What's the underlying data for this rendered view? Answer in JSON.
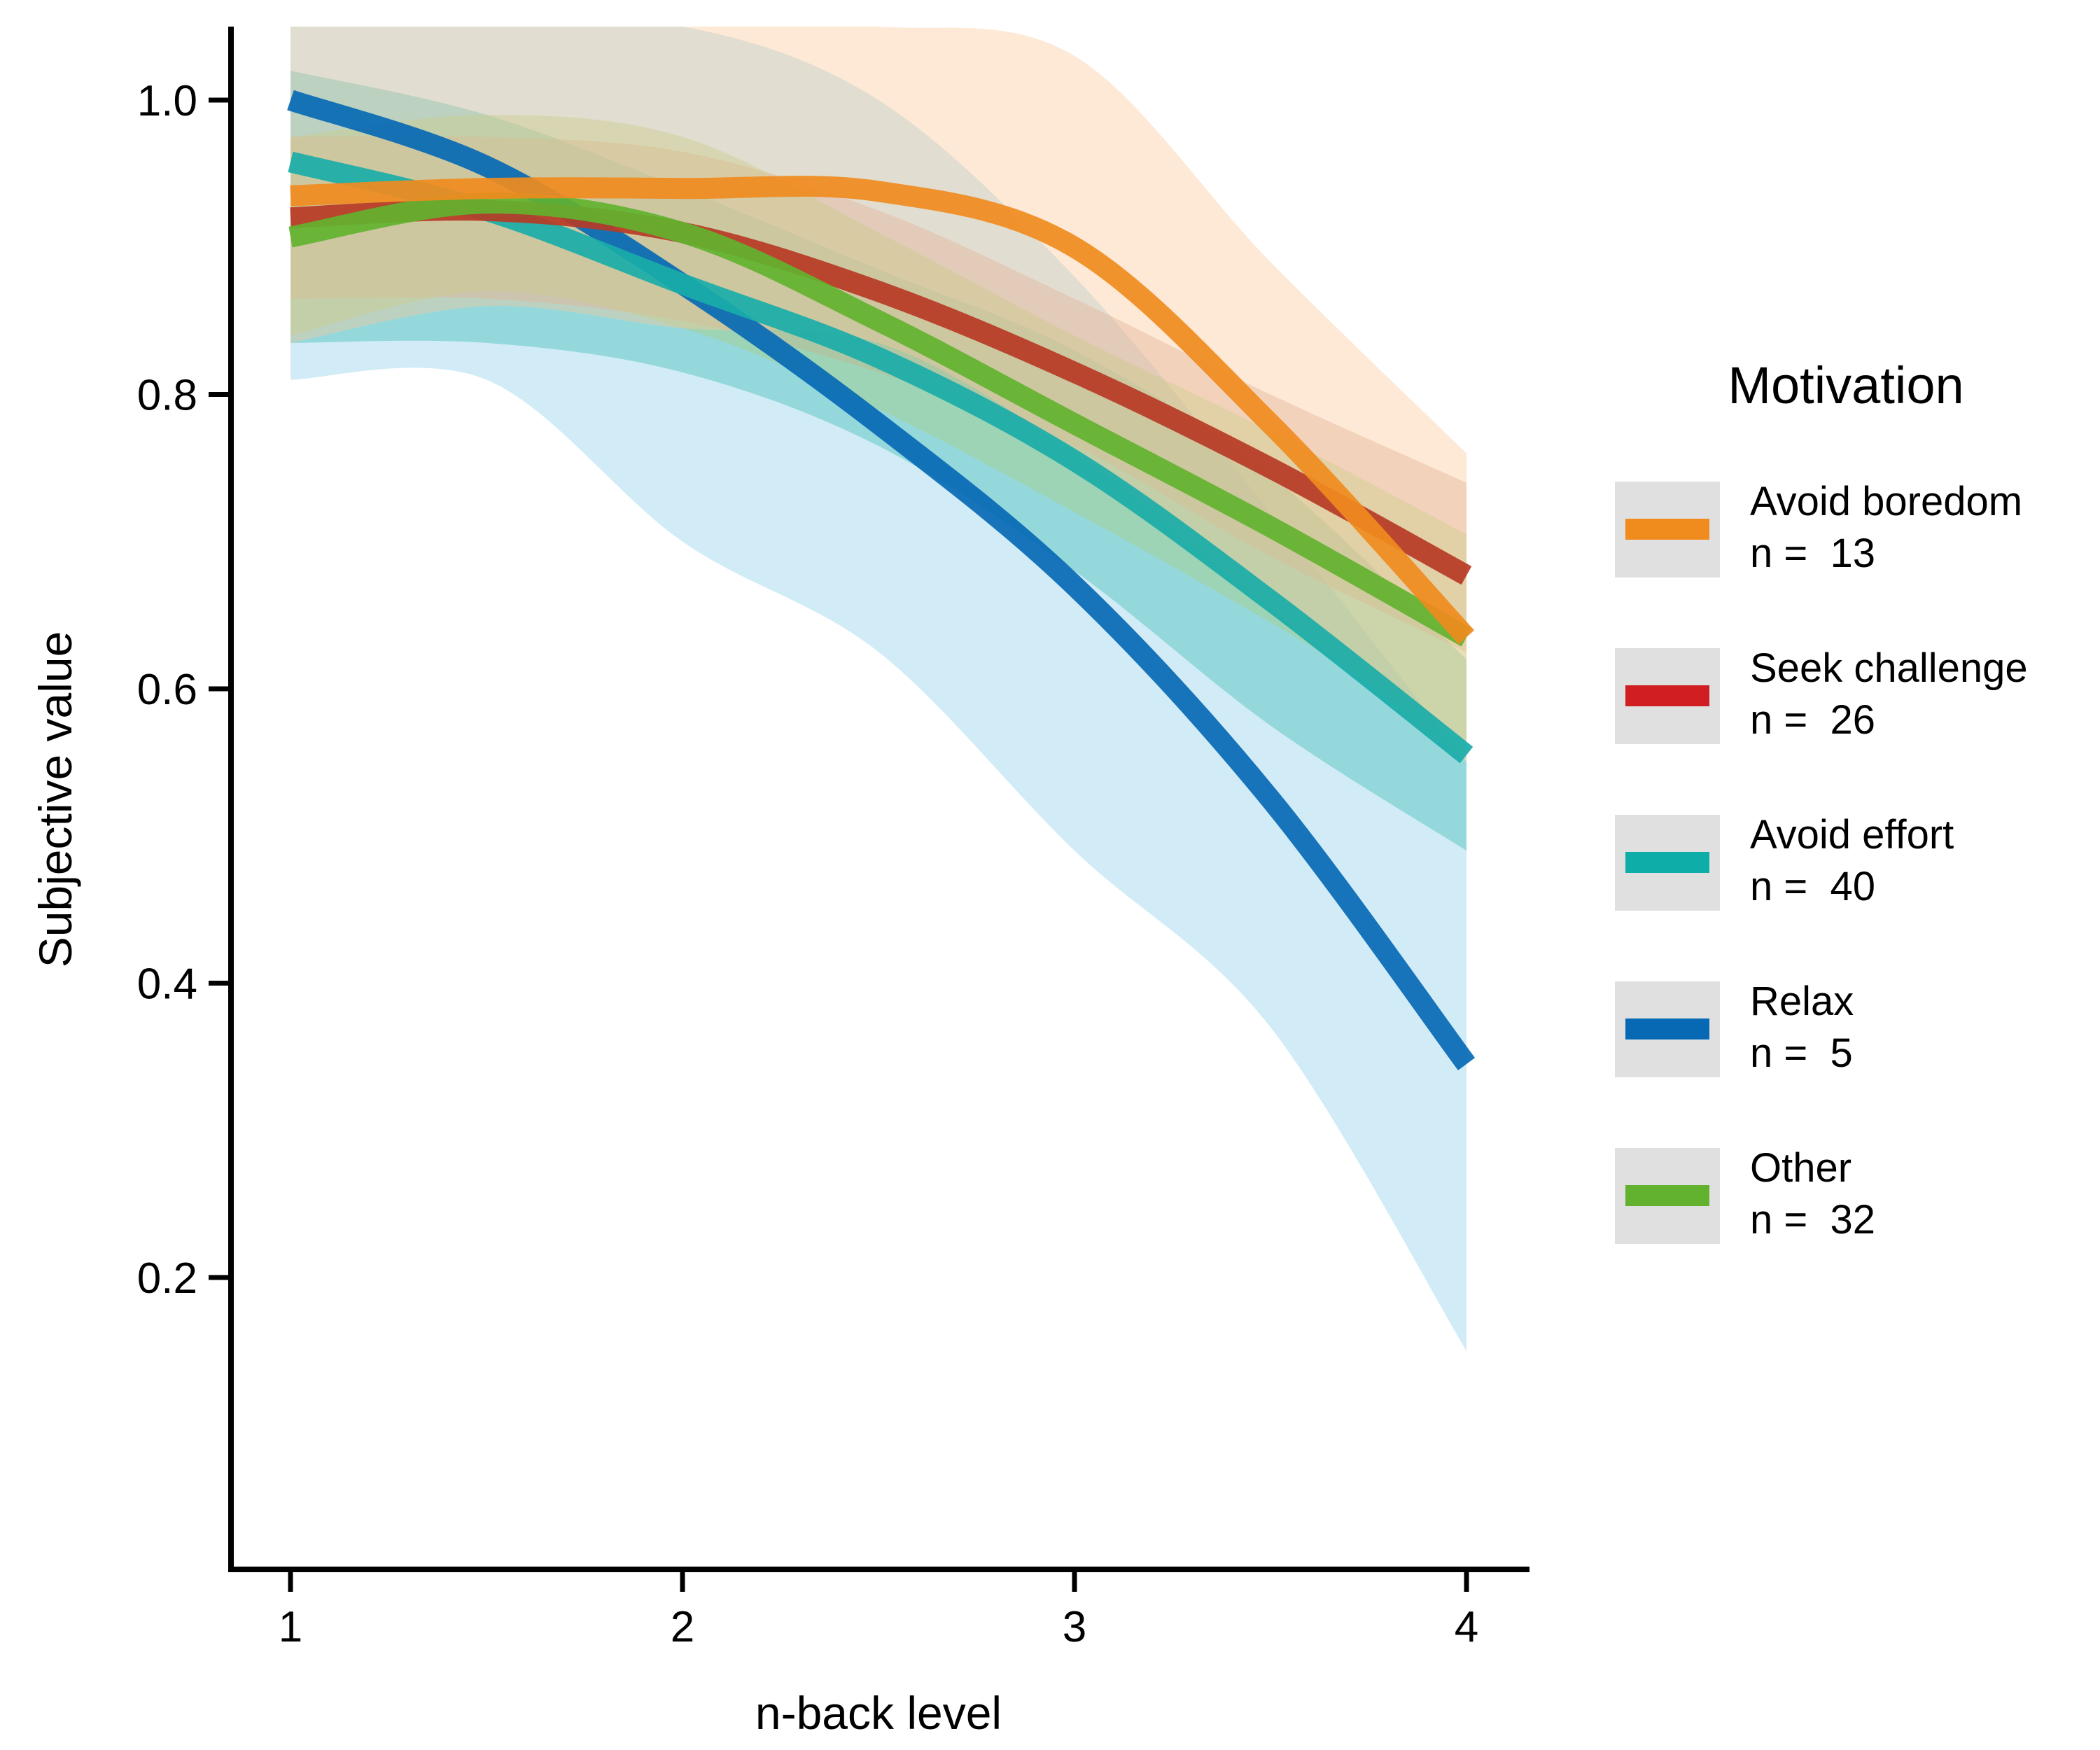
{
  "chart_data": {
    "type": "line",
    "xlabel": "n-back level",
    "ylabel": "Subjective value",
    "xlim": [
      0.85,
      4.15
    ],
    "ylim": [
      0.005,
      1.05
    ],
    "x_ticks": [
      1,
      2,
      3,
      4
    ],
    "x_tick_labels": [
      "1",
      "2",
      "3",
      "4"
    ],
    "y_ticks": [
      0.2,
      0.4,
      0.6,
      0.8,
      1.0
    ],
    "y_tick_labels": [
      "0.2",
      "0.4",
      "0.6",
      "0.8",
      "1.0"
    ],
    "grid": false,
    "legend": {
      "title": "Motivation",
      "position": "right"
    },
    "x": [
      1,
      1.5,
      2,
      2.5,
      3,
      3.5,
      4
    ],
    "series": [
      {
        "name": "Relax",
        "n_label": "n =  5",
        "color": "#0769b4",
        "band_color": "#8dd0ea",
        "values": [
          1.0,
          0.955,
          0.875,
          0.78,
          0.67,
          0.525,
          0.345
        ],
        "lower": [
          0.81,
          0.81,
          0.7,
          0.625,
          0.49,
          0.37,
          0.15
        ],
        "upper": [
          1.05,
          1.05,
          1.05,
          1.0,
          0.88,
          0.72,
          0.55
        ]
      },
      {
        "name": "Avoid effort",
        "n_label": "n =  40",
        "color": "#1aada8",
        "band_color": "#3dbcb4",
        "values": [
          0.958,
          0.925,
          0.875,
          0.825,
          0.755,
          0.66,
          0.555
        ],
        "lower": [
          0.835,
          0.835,
          0.815,
          0.765,
          0.68,
          0.575,
          0.49
        ],
        "upper": [
          1.02,
          0.99,
          0.94,
          0.885,
          0.83,
          0.745,
          0.62
        ]
      },
      {
        "name": "Seek challenge",
        "n_label": "n =  26",
        "color": "#b73a25",
        "band_color": "#d8a198",
        "values": [
          0.92,
          0.925,
          0.91,
          0.87,
          0.815,
          0.75,
          0.677
        ],
        "lower": [
          0.865,
          0.865,
          0.85,
          0.815,
          0.765,
          0.69,
          0.625
        ],
        "upper": [
          0.975,
          0.975,
          0.965,
          0.925,
          0.865,
          0.8,
          0.74
        ]
      },
      {
        "name": "Other",
        "n_label": "n =  32",
        "color": "#62b22f",
        "band_color": "#a9cf7a",
        "values": [
          0.907,
          0.93,
          0.91,
          0.85,
          0.78,
          0.71,
          0.635
        ],
        "lower": [
          0.84,
          0.87,
          0.845,
          0.79,
          0.72,
          0.645,
          0.565
        ],
        "upper": [
          0.975,
          0.99,
          0.975,
          0.91,
          0.84,
          0.775,
          0.705
        ]
      },
      {
        "name": "Avoid boredom",
        "n_label": "n =  13",
        "color": "#f08b1e",
        "band_color": "#fbc997",
        "values": [
          0.935,
          0.94,
          0.94,
          0.938,
          0.9,
          0.78,
          0.635
        ],
        "lower": [
          0.835,
          0.86,
          0.845,
          0.835,
          0.76,
          0.655,
          0.55
        ],
        "upper": [
          1.05,
          1.05,
          1.05,
          1.05,
          1.03,
          0.89,
          0.76
        ]
      }
    ],
    "legend_order": [
      "Avoid boredom",
      "Seek challenge",
      "Avoid effort",
      "Relax",
      "Other"
    ],
    "legend_swatch_colors": {
      "Avoid boredom": "#f08b1e",
      "Seek challenge": "#d01e23",
      "Avoid effort": "#0fada7",
      "Relax": "#0769b4",
      "Other": "#62b22f"
    }
  }
}
